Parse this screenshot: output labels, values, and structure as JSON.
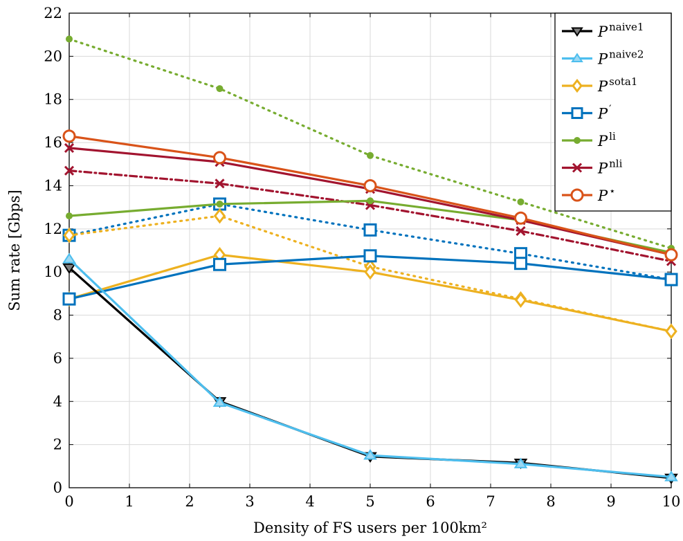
{
  "chart_data": {
    "type": "line",
    "xlabel": "Density of FS users per 100km²",
    "ylabel": "Sum rate [Gbps]",
    "xlim": [
      0,
      10
    ],
    "ylim": [
      0,
      22
    ],
    "xticks": [
      0,
      1,
      2,
      3,
      4,
      5,
      6,
      7,
      8,
      9,
      10
    ],
    "yticks": [
      0,
      2,
      4,
      6,
      8,
      10,
      12,
      14,
      16,
      18,
      20,
      22
    ],
    "grid": true,
    "legend_position": "top-right",
    "x": [
      0,
      2.5,
      5,
      7.5,
      10
    ],
    "series": [
      {
        "name": "naive1",
        "label_base": "P",
        "label_sup": "naive1",
        "color": "#000000",
        "marker": "triangle-down",
        "dash": "solid",
        "values": [
          10.2,
          4.0,
          1.45,
          1.15,
          0.45
        ]
      },
      {
        "name": "naive2",
        "label_base": "P",
        "label_sup": "naive2",
        "color": "#4DBEEE",
        "marker": "triangle-up",
        "dash": "solid",
        "values": [
          10.6,
          3.95,
          1.5,
          1.1,
          0.5
        ]
      },
      {
        "name": "sota1",
        "label_base": "P",
        "label_sup": "sota1",
        "color": "#EDB120",
        "marker": "diamond",
        "dash": "solid",
        "values": [
          8.75,
          10.8,
          10.0,
          8.7,
          7.25
        ]
      },
      {
        "name": "prime",
        "label_base": "P",
        "label_sup": "′",
        "color": "#0072BD",
        "marker": "square",
        "dash": "solid",
        "values": [
          8.75,
          10.35,
          10.75,
          10.4,
          9.65
        ]
      },
      {
        "name": "li",
        "label_base": "P",
        "label_sup": "li",
        "color": "#77AC30",
        "marker": "dot",
        "dash": "solid",
        "values": [
          12.6,
          13.15,
          13.3,
          12.4,
          10.9
        ]
      },
      {
        "name": "nli",
        "label_base": "P",
        "label_sup": "nli",
        "color": "#A2142F",
        "marker": "x",
        "dash": "solid",
        "values": [
          15.75,
          15.1,
          13.85,
          12.4,
          10.8
        ]
      },
      {
        "name": "star",
        "label_base": "P",
        "label_sup": "⋆",
        "color": "#D95319",
        "marker": "circle",
        "dash": "solid",
        "values": [
          16.3,
          15.3,
          14.0,
          12.5,
          10.8
        ]
      }
    ],
    "extra_series": [
      {
        "color": "#77AC30",
        "marker": "dot",
        "dash": "dotted",
        "values": [
          20.8,
          18.5,
          15.4,
          13.25,
          11.1
        ]
      },
      {
        "color": "#A2142F",
        "marker": "x",
        "dash": "dashdot",
        "values": [
          14.7,
          14.1,
          13.1,
          11.9,
          10.5
        ]
      },
      {
        "color": "#0072BD",
        "marker": "square",
        "dash": "dotted",
        "values": [
          11.7,
          13.15,
          11.95,
          10.85,
          9.65
        ]
      },
      {
        "color": "#EDB120",
        "marker": "diamond",
        "dash": "dotted",
        "values": [
          11.7,
          12.6,
          10.25,
          8.75,
          7.25
        ]
      }
    ]
  }
}
